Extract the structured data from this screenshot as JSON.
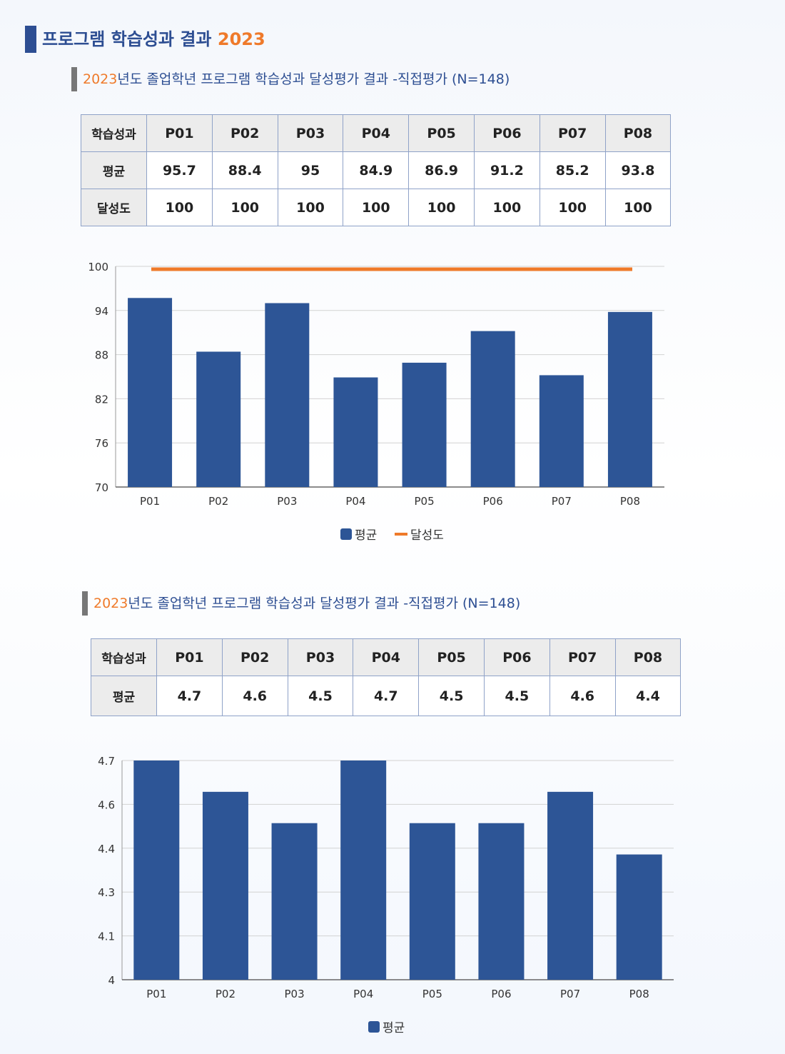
{
  "page_title": {
    "text": "프로그램 학습성과 결과",
    "year": "2023"
  },
  "section1": {
    "title_year": "2023",
    "title_rest": "년도 졸업학년 프로그램 학습성과 달성평가 결과 -직접평가 (N=148)",
    "table": {
      "header": [
        "학습성과",
        "P01",
        "P02",
        "P03",
        "P04",
        "P05",
        "P06",
        "P07",
        "P08"
      ],
      "rows": [
        [
          "평균",
          "95.7",
          "88.4",
          "95",
          "84.9",
          "86.9",
          "91.2",
          "85.2",
          "93.8"
        ],
        [
          "달성도",
          "100",
          "100",
          "100",
          "100",
          "100",
          "100",
          "100",
          "100"
        ]
      ]
    }
  },
  "section2": {
    "title_year": "2023",
    "title_rest": "년도 졸업학년 프로그램 학습성과 달성평가 결과 -직접평가 (N=148)",
    "table": {
      "header": [
        "학습성과",
        "P01",
        "P02",
        "P03",
        "P04",
        "P05",
        "P06",
        "P07",
        "P08"
      ],
      "rows": [
        [
          "평균",
          "4.7",
          "4.6",
          "4.5",
          "4.7",
          "4.5",
          "4.5",
          "4.6",
          "4.4"
        ]
      ]
    }
  },
  "colors": {
    "bar": "#2d5596",
    "line": "#ef7a2a",
    "title": "#2d4e92",
    "year": "#ef7a2a"
  },
  "chart_data": [
    {
      "type": "bar",
      "categories": [
        "P01",
        "P02",
        "P03",
        "P04",
        "P05",
        "P06",
        "P07",
        "P08"
      ],
      "series": [
        {
          "name": "평균",
          "type": "bar",
          "values": [
            95.7,
            88.4,
            95,
            84.9,
            86.9,
            91.2,
            85.2,
            93.8
          ]
        },
        {
          "name": "달성도",
          "type": "line",
          "values": [
            100,
            100,
            100,
            100,
            100,
            100,
            100,
            100
          ]
        }
      ],
      "ylim": [
        70,
        100
      ],
      "yticks": [
        70,
        76,
        82,
        88,
        94,
        100
      ],
      "ytick_labels": [
        "70",
        "76",
        "82",
        "88",
        "94",
        "100"
      ],
      "grid": true,
      "legend": "bottom-center"
    },
    {
      "type": "bar",
      "categories": [
        "P01",
        "P02",
        "P03",
        "P04",
        "P05",
        "P06",
        "P07",
        "P08"
      ],
      "series": [
        {
          "name": "평균",
          "type": "bar",
          "values": [
            4.7,
            4.6,
            4.5,
            4.7,
            4.5,
            4.5,
            4.6,
            4.4
          ]
        }
      ],
      "ylim": [
        4,
        4.7
      ],
      "yticks": [
        4,
        4.14,
        4.28,
        4.42,
        4.56,
        4.7
      ],
      "ytick_labels": [
        "4",
        "4.1",
        "4.3",
        "4.4",
        "4.6",
        "4.7"
      ],
      "grid": true,
      "legend": "bottom-center"
    }
  ]
}
